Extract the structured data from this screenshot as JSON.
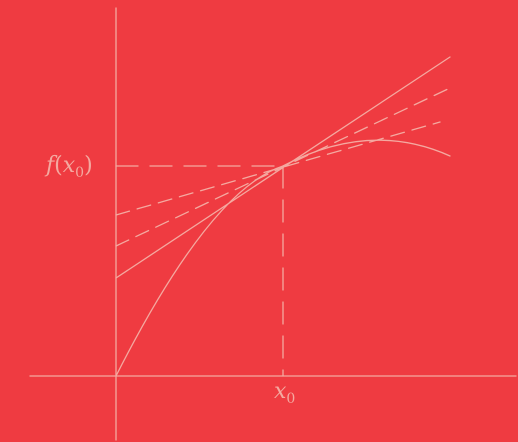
{
  "diagram": {
    "stroke_color": "#F4A9A0",
    "background_color": "#EF3B41",
    "labels": {
      "y_point": {
        "func": "f",
        "open": "(",
        "var": "x",
        "sub": "0",
        "close": ")"
      },
      "x_point": {
        "var": "x",
        "sub": "0"
      }
    }
  }
}
